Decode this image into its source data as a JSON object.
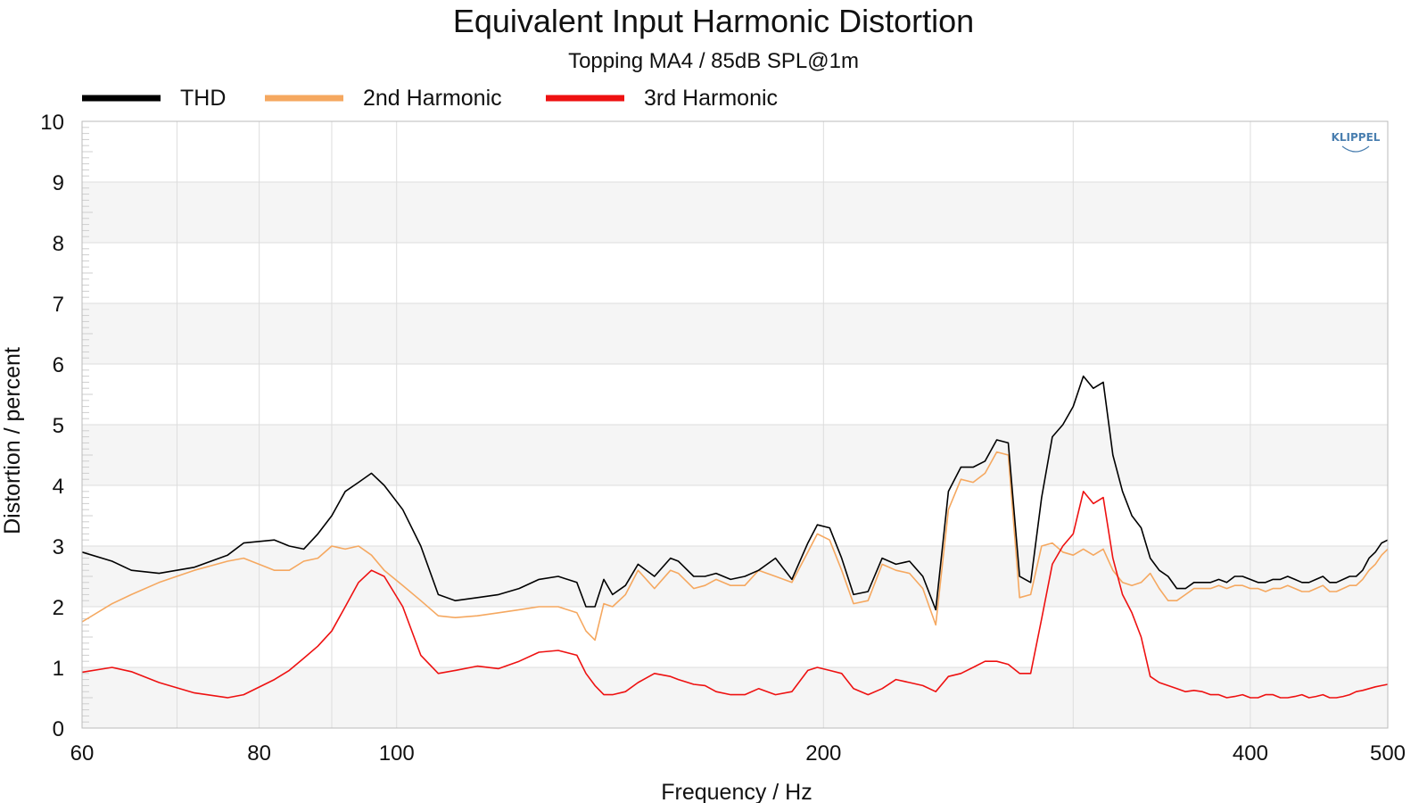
{
  "chart_data": {
    "type": "line",
    "title": "Equivalent Input Harmonic Distortion",
    "subtitle": "Topping MA4 / 85dB SPL@1m",
    "xlabel": "Frequency / Hz",
    "ylabel": "Distortion / percent",
    "xscale": "log",
    "xlim": [
      60,
      500
    ],
    "ylim": [
      0,
      10
    ],
    "xticks": [
      60,
      80,
      100,
      200,
      400,
      500
    ],
    "yticks": [
      0,
      1,
      2,
      3,
      4,
      5,
      6,
      7,
      8,
      9,
      10
    ],
    "grid": true,
    "legend_position": "top-left",
    "logo": "KLIPPEL",
    "series": [
      {
        "name": "THD",
        "color": "#000000",
        "x": [
          60,
          63,
          65,
          68,
          72,
          76,
          78,
          82,
          84,
          86,
          88,
          90,
          92,
          94,
          96,
          98,
          101,
          104,
          107,
          110,
          114,
          118,
          122,
          126,
          130,
          134,
          136,
          138,
          140,
          142,
          145,
          148,
          152,
          156,
          158,
          162,
          165,
          168,
          172,
          176,
          180,
          185,
          190,
          195,
          198,
          202,
          206,
          210,
          215,
          220,
          225,
          230,
          235,
          240,
          245,
          250,
          255,
          260,
          265,
          270,
          275,
          280,
          285,
          290,
          295,
          300,
          305,
          310,
          315,
          320,
          325,
          330,
          335,
          340,
          345,
          350,
          355,
          360,
          365,
          370,
          375,
          380,
          385,
          390,
          395,
          400,
          405,
          410,
          415,
          420,
          425,
          430,
          435,
          440,
          445,
          450,
          455,
          460,
          465,
          470,
          475,
          480,
          485,
          490,
          495,
          500
        ],
        "y": [
          2.9,
          2.75,
          2.6,
          2.55,
          2.65,
          2.85,
          3.05,
          3.1,
          3.0,
          2.95,
          3.2,
          3.5,
          3.9,
          4.05,
          4.2,
          4.0,
          3.6,
          3.0,
          2.2,
          2.1,
          2.15,
          2.2,
          2.3,
          2.45,
          2.5,
          2.4,
          2.0,
          2.0,
          2.45,
          2.2,
          2.35,
          2.7,
          2.5,
          2.8,
          2.75,
          2.5,
          2.5,
          2.55,
          2.45,
          2.5,
          2.6,
          2.8,
          2.45,
          3.05,
          3.35,
          3.3,
          2.8,
          2.2,
          2.25,
          2.8,
          2.7,
          2.75,
          2.5,
          1.95,
          3.9,
          4.3,
          4.3,
          4.4,
          4.75,
          4.7,
          2.5,
          2.4,
          3.8,
          4.8,
          5.0,
          5.3,
          5.8,
          5.6,
          5.7,
          4.5,
          3.9,
          3.5,
          3.3,
          2.8,
          2.6,
          2.5,
          2.3,
          2.3,
          2.4,
          2.4,
          2.4,
          2.45,
          2.4,
          2.5,
          2.5,
          2.45,
          2.4,
          2.4,
          2.45,
          2.45,
          2.5,
          2.45,
          2.4,
          2.4,
          2.45,
          2.5,
          2.4,
          2.4,
          2.45,
          2.5,
          2.5,
          2.6,
          2.8,
          2.9,
          3.05,
          3.1
        ]
      },
      {
        "name": "2nd Harmonic",
        "color": "#f5a860",
        "x": [
          60,
          63,
          65,
          68,
          72,
          76,
          78,
          82,
          84,
          86,
          88,
          90,
          92,
          94,
          96,
          98,
          101,
          104,
          107,
          110,
          114,
          118,
          122,
          126,
          130,
          134,
          136,
          138,
          140,
          142,
          145,
          148,
          152,
          156,
          158,
          162,
          165,
          168,
          172,
          176,
          180,
          185,
          190,
          195,
          198,
          202,
          206,
          210,
          215,
          220,
          225,
          230,
          235,
          240,
          245,
          250,
          255,
          260,
          265,
          270,
          275,
          280,
          285,
          290,
          295,
          300,
          305,
          310,
          315,
          320,
          325,
          330,
          335,
          340,
          345,
          350,
          355,
          360,
          365,
          370,
          375,
          380,
          385,
          390,
          395,
          400,
          405,
          410,
          415,
          420,
          425,
          430,
          435,
          440,
          445,
          450,
          455,
          460,
          465,
          470,
          475,
          480,
          485,
          490,
          495,
          500
        ],
        "y": [
          1.75,
          2.05,
          2.2,
          2.4,
          2.6,
          2.75,
          2.8,
          2.6,
          2.6,
          2.75,
          2.8,
          3.0,
          2.95,
          3.0,
          2.85,
          2.6,
          2.35,
          2.1,
          1.85,
          1.82,
          1.85,
          1.9,
          1.95,
          2.0,
          2.0,
          1.9,
          1.6,
          1.45,
          2.05,
          2.0,
          2.2,
          2.6,
          2.3,
          2.6,
          2.55,
          2.3,
          2.35,
          2.45,
          2.35,
          2.35,
          2.6,
          2.5,
          2.4,
          2.9,
          3.2,
          3.1,
          2.6,
          2.05,
          2.1,
          2.7,
          2.6,
          2.55,
          2.3,
          1.7,
          3.6,
          4.1,
          4.05,
          4.2,
          4.55,
          4.5,
          2.15,
          2.2,
          3.0,
          3.05,
          2.9,
          2.85,
          2.95,
          2.85,
          2.95,
          2.6,
          2.4,
          2.35,
          2.4,
          2.55,
          2.3,
          2.1,
          2.1,
          2.2,
          2.3,
          2.3,
          2.3,
          2.35,
          2.3,
          2.35,
          2.35,
          2.3,
          2.3,
          2.25,
          2.3,
          2.3,
          2.35,
          2.3,
          2.25,
          2.25,
          2.3,
          2.35,
          2.25,
          2.25,
          2.3,
          2.35,
          2.35,
          2.45,
          2.6,
          2.7,
          2.85,
          2.95
        ]
      },
      {
        "name": "3rd Harmonic",
        "color": "#ee1111",
        "x": [
          60,
          63,
          65,
          68,
          72,
          76,
          78,
          82,
          84,
          86,
          88,
          90,
          92,
          94,
          96,
          98,
          101,
          104,
          107,
          110,
          114,
          118,
          122,
          126,
          130,
          134,
          136,
          138,
          140,
          142,
          145,
          148,
          152,
          156,
          158,
          162,
          165,
          168,
          172,
          176,
          180,
          185,
          190,
          195,
          198,
          202,
          206,
          210,
          215,
          220,
          225,
          230,
          235,
          240,
          245,
          250,
          255,
          260,
          265,
          270,
          275,
          280,
          285,
          290,
          295,
          300,
          305,
          310,
          315,
          320,
          325,
          330,
          335,
          340,
          345,
          350,
          355,
          360,
          365,
          370,
          375,
          380,
          385,
          390,
          395,
          400,
          405,
          410,
          415,
          420,
          425,
          430,
          435,
          440,
          445,
          450,
          455,
          460,
          465,
          470,
          475,
          480,
          485,
          490,
          495,
          500
        ],
        "y": [
          0.92,
          1.0,
          0.93,
          0.75,
          0.58,
          0.5,
          0.55,
          0.8,
          0.95,
          1.15,
          1.35,
          1.6,
          2.0,
          2.4,
          2.6,
          2.5,
          2.0,
          1.2,
          0.9,
          0.95,
          1.02,
          0.98,
          1.1,
          1.25,
          1.28,
          1.2,
          0.9,
          0.7,
          0.55,
          0.55,
          0.6,
          0.75,
          0.9,
          0.85,
          0.8,
          0.72,
          0.7,
          0.6,
          0.55,
          0.55,
          0.65,
          0.55,
          0.6,
          0.95,
          1.0,
          0.95,
          0.9,
          0.65,
          0.55,
          0.65,
          0.8,
          0.75,
          0.7,
          0.6,
          0.85,
          0.9,
          1.0,
          1.1,
          1.1,
          1.05,
          0.9,
          0.9,
          1.8,
          2.7,
          3.0,
          3.2,
          3.9,
          3.7,
          3.8,
          2.8,
          2.2,
          1.9,
          1.5,
          0.85,
          0.75,
          0.7,
          0.65,
          0.6,
          0.62,
          0.6,
          0.55,
          0.55,
          0.5,
          0.52,
          0.55,
          0.5,
          0.5,
          0.55,
          0.55,
          0.5,
          0.5,
          0.52,
          0.55,
          0.5,
          0.52,
          0.55,
          0.5,
          0.5,
          0.52,
          0.55,
          0.6,
          0.62,
          0.65,
          0.68,
          0.7,
          0.72
        ]
      }
    ]
  }
}
